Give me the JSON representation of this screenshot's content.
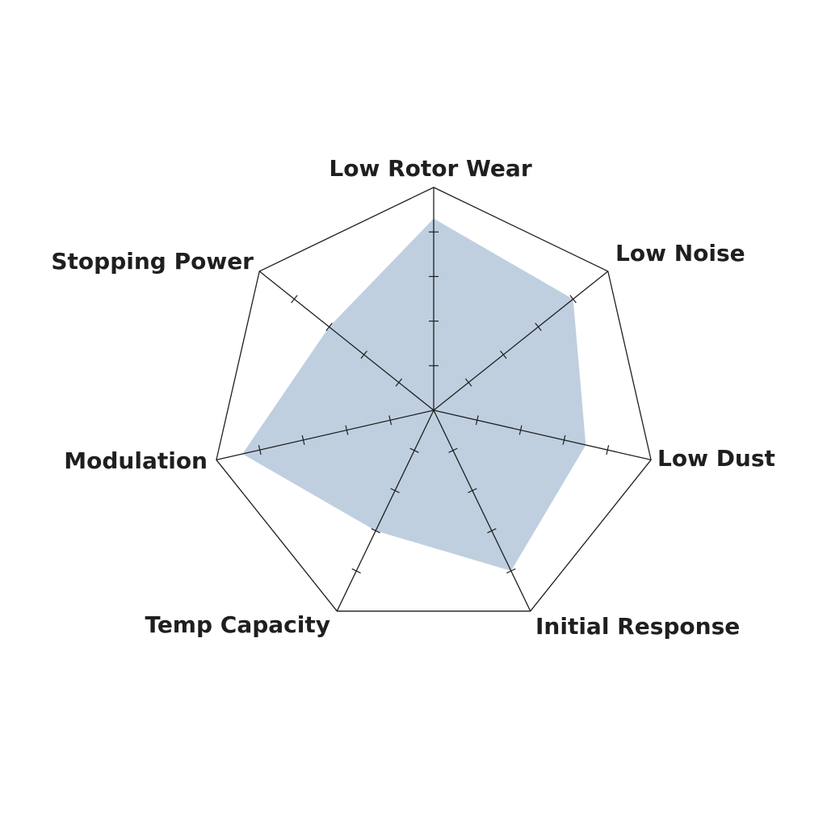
{
  "chart_data": {
    "type": "radar",
    "categories": [
      "Low Rotor Wear",
      "Low Noise",
      "Low Dust",
      "Initial Response",
      "Temp Capacity",
      "Modulation",
      "Stopping Power"
    ],
    "values": [
      4.3,
      4.0,
      3.5,
      4.0,
      3.0,
      4.4,
      3.0
    ],
    "range": [
      0,
      5
    ],
    "ticks": [
      1,
      2,
      3,
      4,
      5
    ],
    "fill_color": "#bfcfe0",
    "line_color": "#1f1f1f",
    "grid": "outer polygon only"
  }
}
